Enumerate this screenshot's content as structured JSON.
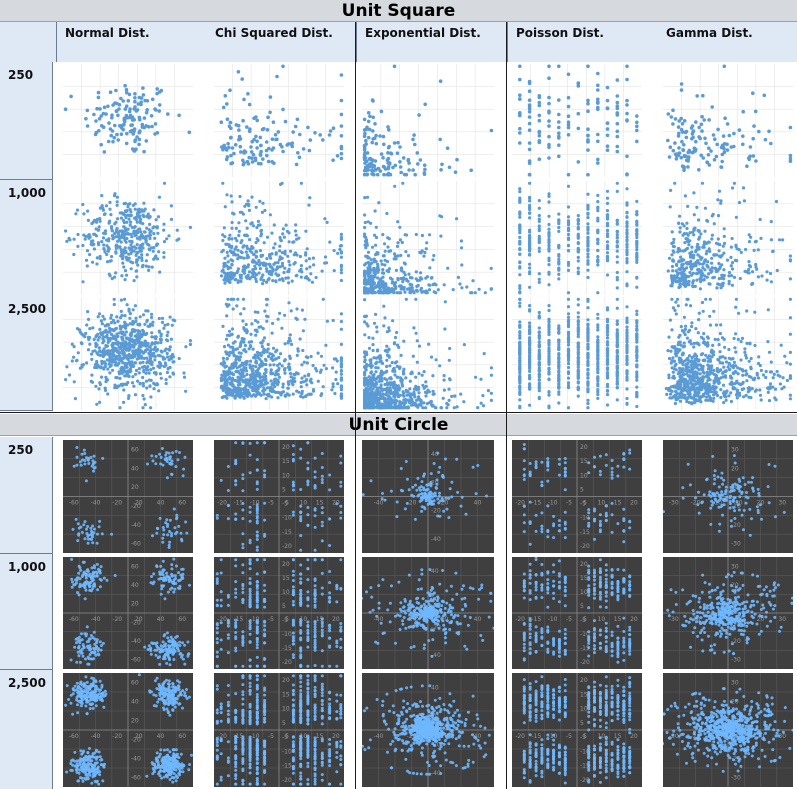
{
  "sections": [
    {
      "title": "Unit Square"
    },
    {
      "title": "Unit Circle"
    }
  ],
  "columns": [
    "Normal Dist.",
    "Chi Squared Dist.",
    "Exponential Dist.",
    "Poisson Dist.",
    "Gamma Dist."
  ],
  "rows": {
    "square": [
      "250",
      "1,000",
      "2,500"
    ],
    "circle": [
      "250",
      "1,000",
      "2,500"
    ]
  },
  "colors": {
    "point_light": "#5b9bd5",
    "point_dark": "#6fb8ff",
    "grid_light": "#e3e3e3",
    "grid_dark": "#5a5a5a",
    "header_bg": "#dfe9f6",
    "section_bg": "#d6d9dd"
  },
  "chart_data": {
    "type": "scatter",
    "title": "",
    "layout_note": "grid of scatter plots: 2 sections (Unit Square, Unit Circle) × 3 sample sizes × 5 distributions",
    "sample_sizes": [
      250,
      1000,
      2500
    ],
    "distributions": [
      "Normal Dist.",
      "Chi Squared Dist.",
      "Exponential Dist.",
      "Poisson Dist.",
      "Gamma Dist."
    ],
    "circle_tick_labels": {
      "Normal Dist.": [
        "-60",
        "-40",
        "-20",
        "20",
        "40",
        "60"
      ],
      "Chi Squared Dist.": [
        "-20",
        "-15",
        "-10",
        "-5",
        "5",
        "10",
        "15",
        "20"
      ],
      "Exponential Dist.": [
        "-40",
        "-20",
        "20",
        "40"
      ],
      "Poisson Dist.": [
        "-20",
        "-15",
        "-10",
        "-5",
        "5",
        "10",
        "15",
        "20"
      ],
      "Gamma Dist.": [
        "-30",
        "-20",
        "-10",
        "10",
        "20",
        "30"
      ]
    }
  }
}
